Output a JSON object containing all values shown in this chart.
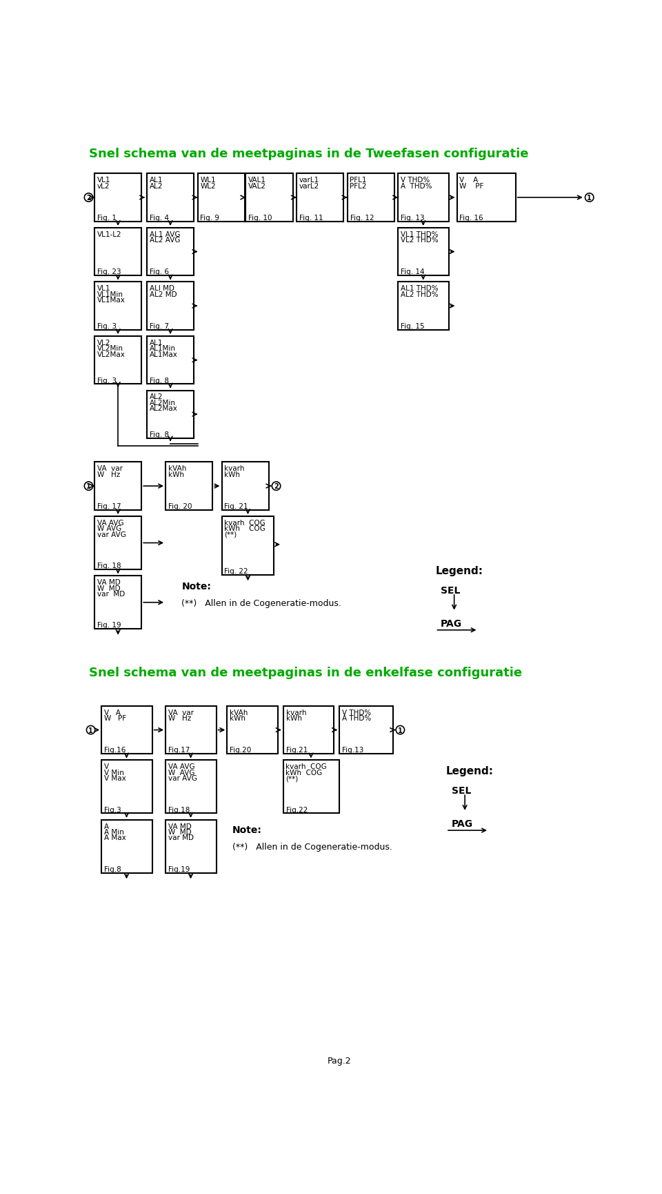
{
  "title1": "Snel schema van de meetpaginas in de Tweefasen configuratie",
  "title2": "Snel schema van de meetpaginas in de enkelfase configuratie",
  "title_color": "#00aa00",
  "bg_color": "#ffffff",
  "page_label": "Pag.2"
}
